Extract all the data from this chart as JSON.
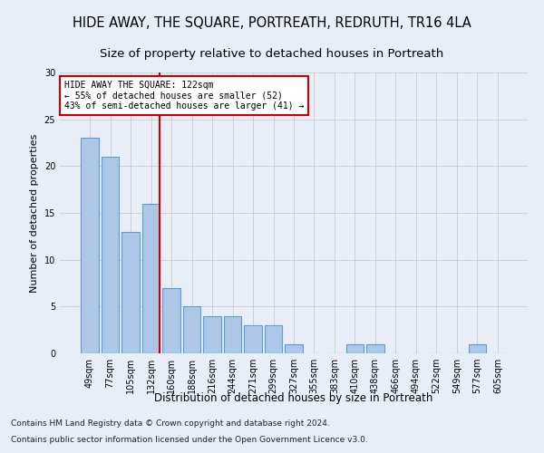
{
  "title": "HIDE AWAY, THE SQUARE, PORTREATH, REDRUTH, TR16 4LA",
  "subtitle": "Size of property relative to detached houses in Portreath",
  "xlabel": "Distribution of detached houses by size in Portreath",
  "ylabel": "Number of detached properties",
  "categories": [
    "49sqm",
    "77sqm",
    "105sqm",
    "132sqm",
    "160sqm",
    "188sqm",
    "216sqm",
    "244sqm",
    "271sqm",
    "299sqm",
    "327sqm",
    "355sqm",
    "383sqm",
    "410sqm",
    "438sqm",
    "466sqm",
    "494sqm",
    "522sqm",
    "549sqm",
    "577sqm",
    "605sqm"
  ],
  "values": [
    23,
    21,
    13,
    16,
    7,
    5,
    4,
    4,
    3,
    3,
    1,
    0,
    0,
    1,
    1,
    0,
    0,
    0,
    0,
    1,
    0
  ],
  "bar_color": "#aec6e8",
  "bar_edge_color": "#5a9fd4",
  "marker_line_index": 3,
  "marker_line_color": "#cc0000",
  "annotation_text": "HIDE AWAY THE SQUARE: 122sqm\n← 55% of detached houses are smaller (52)\n43% of semi-detached houses are larger (41) →",
  "annotation_box_color": "#ffffff",
  "annotation_box_edge": "#cc0000",
  "ylim": [
    0,
    30
  ],
  "yticks": [
    0,
    5,
    10,
    15,
    20,
    25,
    30
  ],
  "grid_color": "#cccccc",
  "background_color": "#e8eef8",
  "footer_line1": "Contains HM Land Registry data © Crown copyright and database right 2024.",
  "footer_line2": "Contains public sector information licensed under the Open Government Licence v3.0.",
  "title_fontsize": 10.5,
  "subtitle_fontsize": 9.5,
  "ylabel_fontsize": 8,
  "xlabel_fontsize": 8.5,
  "tick_fontsize": 7,
  "annotation_fontsize": 7,
  "footer_fontsize": 6.5
}
